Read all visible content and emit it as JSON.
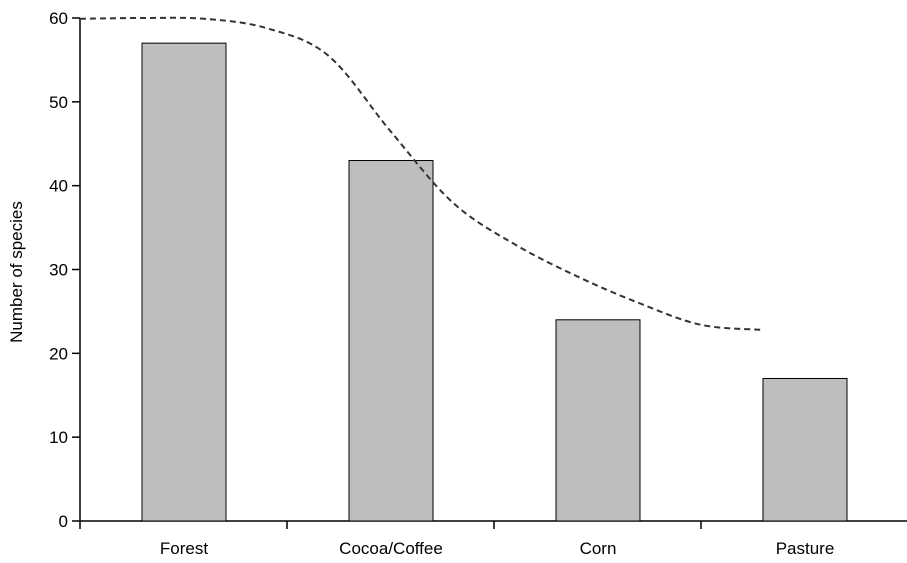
{
  "chart_data": {
    "type": "bar",
    "title": "",
    "xlabel": "",
    "ylabel": "Number of species",
    "ylim": [
      0,
      60
    ],
    "yticks": [
      0,
      10,
      20,
      30,
      40,
      50,
      60
    ],
    "grid": false,
    "legend": "none",
    "categories": [
      "Forest",
      "Cocoa/Coffee",
      "Corn",
      "Pasture"
    ],
    "series": [
      {
        "values": [
          57,
          43,
          24,
          17
        ]
      }
    ],
    "trend_line": {
      "style": "dashed",
      "x": [
        0.0,
        0.3,
        0.6,
        0.9,
        1.2,
        1.5,
        1.8,
        2.1,
        2.4,
        2.7,
        3.0,
        3.3
      ],
      "y": [
        59.9,
        60.0,
        59.9,
        58.8,
        55.5,
        46.5,
        38.0,
        33.0,
        29.2,
        26.0,
        23.4,
        22.8
      ]
    },
    "colors": {
      "bar_fill": "#bebebe",
      "bar_stroke": "#000000",
      "axis": "#000000",
      "trend_line": "#333333"
    }
  }
}
